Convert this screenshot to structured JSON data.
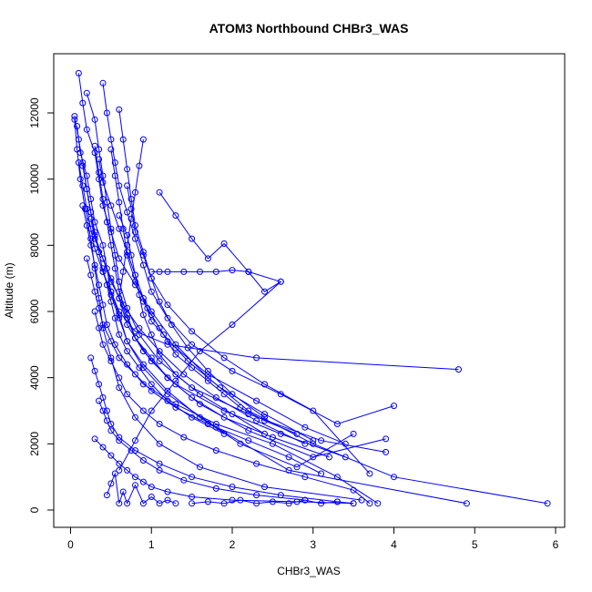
{
  "chart_data": {
    "type": "scatter",
    "title": "ATOM3 Northbound CHBr3_WAS",
    "xlabel": "CHBr3_WAS",
    "ylabel": "Altitude (m)",
    "xlim": [
      0,
      6
    ],
    "ylim": [
      0,
      13000
    ],
    "x_ticks": [
      0,
      1,
      2,
      3,
      4,
      5,
      6
    ],
    "y_ticks": [
      0,
      2000,
      4000,
      6000,
      8000,
      10000,
      12000
    ],
    "grid": false,
    "legend": "none",
    "point_style": "open-circle-with-connecting-lines",
    "color": "#0000ff",
    "series": [
      {
        "x": [
          0.05,
          0.1,
          0.15,
          0.2,
          0.25,
          0.3,
          0.35,
          0.4,
          0.5,
          0.6,
          0.8,
          1.2,
          2.3,
          4.8
        ],
        "y": [
          11900,
          11200,
          10500,
          9700,
          9000,
          8400,
          7800,
          7200,
          6600,
          6000,
          5400,
          5000,
          4600,
          4250
        ]
      },
      {
        "x": [
          0.1,
          0.15,
          0.2,
          0.3,
          0.35,
          0.4,
          0.5,
          0.6,
          0.8,
          1.0,
          1.3,
          1.7,
          2.2,
          3.0,
          4.0,
          5.9
        ],
        "y": [
          13200,
          12300,
          11500,
          10800,
          10000,
          9200,
          8400,
          7600,
          6800,
          6000,
          5000,
          4000,
          3000,
          2000,
          1000,
          200
        ]
      },
      {
        "x": [
          0.08,
          0.12,
          0.2,
          0.25,
          0.3,
          0.4,
          0.45,
          0.5,
          0.6,
          0.7,
          0.9,
          1.2,
          1.8,
          2.7,
          4.9
        ],
        "y": [
          11600,
          10800,
          10100,
          9400,
          8700,
          8000,
          7300,
          6600,
          5900,
          5100,
          4300,
          3500,
          2500,
          1200,
          200
        ]
      },
      {
        "x": [
          0.4,
          0.45,
          0.5,
          0.55,
          0.6,
          0.7,
          0.8,
          0.9,
          1.0,
          1.2,
          1.5,
          2.0,
          2.6,
          3.3,
          4.0
        ],
        "y": [
          12900,
          12000,
          11200,
          10500,
          9800,
          9000,
          8200,
          7400,
          6600,
          5800,
          5000,
          4200,
          3500,
          2600,
          3150
        ]
      },
      {
        "x": [
          0.2,
          0.3,
          0.35,
          0.4,
          0.45,
          0.5,
          0.55,
          0.6,
          0.7,
          0.85,
          1.1,
          1.5,
          2.2,
          3.1,
          3.9
        ],
        "y": [
          12600,
          11800,
          10900,
          10100,
          9300,
          8500,
          7700,
          6900,
          6100,
          5300,
          4500,
          3700,
          2900,
          2100,
          1750
        ]
      },
      {
        "x": [
          0.05,
          0.08,
          0.12,
          0.18,
          0.25,
          0.3,
          0.35,
          0.4,
          0.5,
          0.6,
          0.8,
          1.1,
          1.6,
          2.4,
          3.6
        ],
        "y": [
          11800,
          10900,
          10000,
          9100,
          8200,
          7300,
          6400,
          5500,
          4600,
          3700,
          2800,
          2000,
          1300,
          700,
          300
        ]
      },
      {
        "x": [
          0.3,
          0.35,
          0.4,
          0.45,
          0.5,
          0.55,
          0.6,
          0.7,
          0.8,
          1.0,
          1.3,
          1.9,
          2.6,
          3.4
        ],
        "y": [
          11000,
          10200,
          9400,
          8700,
          8000,
          7300,
          6600,
          5900,
          5200,
          4500,
          3800,
          3000,
          2300,
          1600
        ]
      },
      {
        "x": [
          0.6,
          0.65,
          0.7,
          0.75,
          0.8,
          0.9,
          1.0,
          1.2,
          1.5,
          1.9,
          2.4,
          3.0,
          3.7
        ],
        "y": [
          12100,
          11200,
          10300,
          9400,
          8600,
          7800,
          7000,
          6200,
          5400,
          4600,
          3800,
          3000,
          1100
        ]
      },
      {
        "x": [
          0.1,
          0.15,
          0.2,
          0.25,
          0.3,
          0.4,
          0.5,
          0.6,
          0.7,
          0.9,
          1.2,
          1.6,
          2.1,
          2.8,
          3.5
        ],
        "y": [
          10500,
          9800,
          9100,
          8500,
          7900,
          7200,
          6500,
          5800,
          5100,
          4400,
          3600,
          2800,
          2000,
          1300,
          2300
        ]
      },
      {
        "x": [
          0.9,
          0.85,
          0.8,
          0.75,
          0.7,
          0.65,
          0.6,
          0.7,
          0.9,
          1.2,
          1.6,
          2.2,
          3.0,
          3.9
        ],
        "y": [
          11200,
          10400,
          9600,
          8800,
          8000,
          7200,
          6400,
          5600,
          4800,
          4000,
          3200,
          2400,
          1600,
          2150
        ]
      },
      {
        "x": [
          0.15,
          0.2,
          0.25,
          0.3,
          0.35,
          0.4,
          0.45,
          0.55,
          0.7,
          0.9,
          1.3,
          1.8,
          2.5,
          3.3,
          3.8
        ],
        "y": [
          9200,
          8600,
          8000,
          7400,
          6800,
          6200,
          5600,
          5000,
          4400,
          3800,
          3200,
          2600,
          2000,
          1000,
          200
        ]
      },
      {
        "x": [
          0.35,
          0.4,
          0.5,
          0.6,
          0.7,
          0.8,
          0.9,
          1.0,
          1.3,
          1.7,
          2.3,
          2.9,
          3.4
        ],
        "y": [
          10600,
          9900,
          9200,
          8500,
          7800,
          7100,
          6400,
          5700,
          4900,
          4100,
          3300,
          2500,
          2000
        ]
      },
      {
        "x": [
          1.1,
          1.3,
          1.5,
          1.7,
          1.9,
          2.2,
          2.6,
          2.0,
          1.6,
          1.3,
          1.0,
          0.8,
          0.6
        ],
        "y": [
          9600,
          8900,
          8200,
          7600,
          8050,
          7200,
          6900,
          5600,
          4800,
          3900,
          3000,
          2100,
          1200
        ]
      },
      {
        "x": [
          0.25,
          0.3,
          0.4,
          0.5,
          0.6,
          0.7,
          0.8,
          1.0,
          1.2,
          1.5,
          1.9,
          2.5,
          3.2
        ],
        "y": [
          8800,
          8200,
          7600,
          7000,
          6400,
          5800,
          5200,
          4600,
          4000,
          3400,
          2800,
          2200,
          1600
        ]
      },
      {
        "x": [
          0.2,
          0.25,
          0.3,
          0.35,
          0.4,
          0.5,
          0.6,
          0.8,
          1.0,
          1.3,
          1.7,
          2.2,
          2.7,
          3.1
        ],
        "y": [
          7600,
          7100,
          6600,
          6100,
          5600,
          5100,
          4600,
          4100,
          3600,
          3100,
          2600,
          2100,
          1600,
          1100
        ]
      },
      {
        "x": [
          0.3,
          0.35,
          0.4,
          0.5,
          0.6,
          0.7,
          0.9,
          1.1,
          1.4,
          1.8,
          2.3,
          2.9,
          3.5,
          3.7
        ],
        "y": [
          6000,
          5500,
          5000,
          4500,
          4000,
          3500,
          3000,
          2600,
          2200,
          1800,
          1400,
          1000,
          600,
          200
        ]
      },
      {
        "x": [
          0.25,
          0.3,
          0.35,
          0.4,
          0.45,
          0.5,
          0.6,
          0.8,
          1.1,
          1.5,
          2.0,
          2.6,
          3.3
        ],
        "y": [
          4600,
          4200,
          3800,
          3400,
          3000,
          2600,
          2200,
          1800,
          1400,
          1000,
          700,
          450,
          250
        ]
      },
      {
        "x": [
          0.35,
          0.4,
          0.45,
          0.5,
          0.6,
          0.75,
          0.9,
          1.1,
          1.4,
          1.8,
          2.3,
          2.9
        ],
        "y": [
          3300,
          3000,
          2700,
          2400,
          2100,
          1800,
          1500,
          1200,
          900,
          650,
          450,
          300
        ]
      },
      {
        "x": [
          0.3,
          0.4,
          0.5,
          0.6,
          0.7,
          0.8,
          0.9,
          1.0,
          1.2,
          1.5,
          2.0,
          2.8,
          3.5
        ],
        "y": [
          2150,
          1900,
          1650,
          1400,
          1200,
          1000,
          850,
          700,
          550,
          400,
          300,
          250,
          200
        ]
      },
      {
        "x": [
          0.45,
          0.5,
          0.55,
          0.6,
          0.65,
          0.7,
          0.8,
          0.9,
          1.0,
          1.1,
          1.2,
          1.3
        ],
        "y": [
          450,
          800,
          1100,
          200,
          550,
          200,
          750,
          200,
          400,
          200,
          300,
          200
        ]
      },
      {
        "x": [
          1.5,
          1.7,
          1.9,
          2.1,
          2.3,
          2.5,
          2.7,
          2.9,
          3.1,
          3.3,
          3.5
        ],
        "y": [
          200,
          250,
          200,
          300,
          200,
          250,
          200,
          300,
          200,
          250,
          200
        ]
      },
      {
        "x": [
          0.6,
          0.7,
          0.75,
          0.8,
          0.85,
          0.9,
          1.0,
          1.1,
          1.3,
          1.6,
          2.0,
          2.4
        ],
        "y": [
          8900,
          8300,
          7700,
          7100,
          6500,
          5900,
          5300,
          4700,
          4100,
          3500,
          2900,
          2300
        ]
      },
      {
        "x": [
          0.5,
          0.55,
          0.6,
          0.65,
          0.7,
          0.8,
          0.95,
          1.15,
          1.45,
          1.85,
          2.4,
          3.0
        ],
        "y": [
          10900,
          10100,
          9300,
          8500,
          7700,
          6900,
          6100,
          5300,
          4500,
          3700,
          2900,
          2100
        ]
      },
      {
        "x": [
          0.15,
          0.2,
          0.25,
          0.3,
          0.4,
          0.5,
          0.65,
          0.85,
          1.1,
          1.4,
          1.8,
          2.3,
          2.9
        ],
        "y": [
          10400,
          9700,
          9000,
          8300,
          7600,
          6900,
          6200,
          5500,
          4800,
          4100,
          3400,
          2700,
          2000
        ]
      },
      {
        "x": [
          0.7,
          0.75,
          0.8,
          0.9,
          1.0,
          1.1,
          1.25,
          1.45,
          1.7,
          2.0,
          2.4
        ],
        "y": [
          9800,
          9100,
          8400,
          7700,
          7000,
          6300,
          5600,
          4900,
          4200,
          3500,
          2800
        ]
      },
      {
        "x": [
          0.4,
          0.45,
          0.5,
          0.55,
          0.6,
          0.7,
          0.85,
          1.0,
          1.2,
          1.5,
          1.9
        ],
        "y": [
          7300,
          6800,
          6300,
          5800,
          5300,
          4800,
          4300,
          3800,
          3300,
          2800,
          2300
        ]
      },
      {
        "x": [
          1.0,
          1.1,
          1.2,
          1.4,
          1.6,
          1.8,
          2.0,
          2.2,
          2.4,
          2.6
        ],
        "y": [
          7200,
          7200,
          7200,
          7200,
          7200,
          7200,
          7250,
          7200,
          6600,
          6900
        ]
      },
      {
        "x": [
          0.9,
          1.0,
          1.1,
          1.2,
          1.3,
          1.5,
          1.7,
          1.9,
          2.1,
          2.4,
          2.8
        ],
        "y": [
          6300,
          5900,
          5500,
          5100,
          4700,
          4300,
          3900,
          3500,
          3100,
          2700,
          2300
        ]
      }
    ]
  }
}
